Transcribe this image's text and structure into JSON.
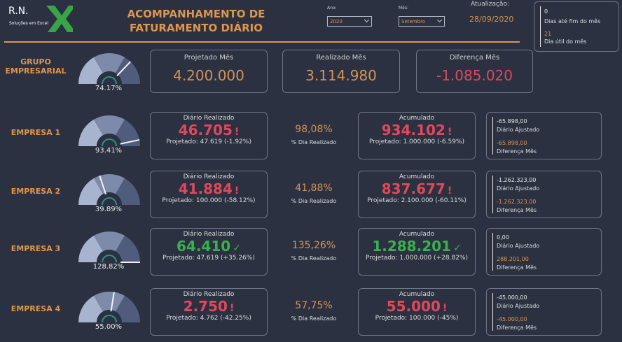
{
  "header": {
    "logo_text": "R.N.",
    "logo_sub": "Soluções em Excel",
    "title_line1": "ACOMPANHAMENTO DE",
    "title_line2": "FATURAMENTO DIÁRIO"
  },
  "filters": {
    "ano_label": "Ano:",
    "ano_value": "2020",
    "mes_label": "Mês:",
    "mes_value": "Setembro",
    "atualizacao_label": "Atualização:",
    "atualizacao_value": "28/09/2020"
  },
  "info_box": {
    "dias_fim": "0",
    "dias_fim_label": "Dias até fim do mês",
    "dia_util": "21",
    "dia_util_label": "Dia útil do mês"
  },
  "grupo": {
    "label_line1": "GRUPO",
    "label_line2": "EMPRESARIAL",
    "gauge_value": "74.17%",
    "gauge_fraction": 0.7417,
    "projetado_title": "Projetado Mês",
    "projetado_value": "4.200.000",
    "realizado_title": "Realizado Mês",
    "realizado_value": "3.114.980",
    "diferenca_title": "Diferença Mês",
    "diferenca_value": "-1.085.020"
  },
  "labels": {
    "diario_title": "Diário Realizado",
    "acumulado_title": "Acumulado",
    "pct_label": "% Dia Realizado",
    "ajustado_label": "Diário Ajustado",
    "diferenca_label": "Diferença Mês"
  },
  "empresas": [
    {
      "name": "EMPRESA 1",
      "gauge_value": "93.41%",
      "gauge_fraction": 0.9341,
      "diario_value": "46.705",
      "diario_icon": "!",
      "diario_sub": "Projetado: 47.619 (-1.92%)",
      "status": "red",
      "pct": "98,08%",
      "acum_value": "934.102",
      "acum_icon": "!",
      "acum_sub": "Projetado: 1.000.000 (-6.59%)",
      "acum_status": "red",
      "ajustado": "-65.898,00",
      "diferenca": "-65.898,00"
    },
    {
      "name": "EMPRESA 2",
      "gauge_value": "39.89%",
      "gauge_fraction": 0.3989,
      "diario_value": "41.884",
      "diario_icon": "!",
      "diario_sub": "Projetado: 100.000 (-58.12%)",
      "status": "red",
      "pct": "41,88%",
      "acum_value": "837.677",
      "acum_icon": "!",
      "acum_sub": "Projetado: 2.100.000 (-60.11%)",
      "acum_status": "red",
      "ajustado": "-1.262.323,00",
      "diferenca": "-1.262.323,00"
    },
    {
      "name": "EMPRESA 3",
      "gauge_value": "128.82%",
      "gauge_fraction": 1.0,
      "diario_value": "64.410",
      "diario_icon": "✓",
      "diario_sub": "Projetado: 47.619 (+35.26%)",
      "status": "green",
      "pct": "135,26%",
      "acum_value": "1.288.201",
      "acum_icon": "✓",
      "acum_sub": "Projetado: 1.000.000 (+28.82%)",
      "acum_status": "green",
      "ajustado": "0,00",
      "diferenca": "288.201,00"
    },
    {
      "name": "EMPRESA 4",
      "gauge_value": "55.00%",
      "gauge_fraction": 0.55,
      "diario_value": "2.750",
      "diario_icon": "!",
      "diario_sub": "Projetado: 4.762 (-42.25%)",
      "status": "red",
      "pct": "57,75%",
      "acum_value": "55.000",
      "acum_icon": "!",
      "acum_sub": "Projetado: 100.000 (-45%)",
      "acum_status": "red",
      "ajustado": "-45.000,00",
      "diferenca": "-45.000,00"
    }
  ],
  "colors": {
    "background": "#2b3141",
    "accent": "#e0954a",
    "negative": "#e0485c",
    "positive": "#37b24d"
  }
}
